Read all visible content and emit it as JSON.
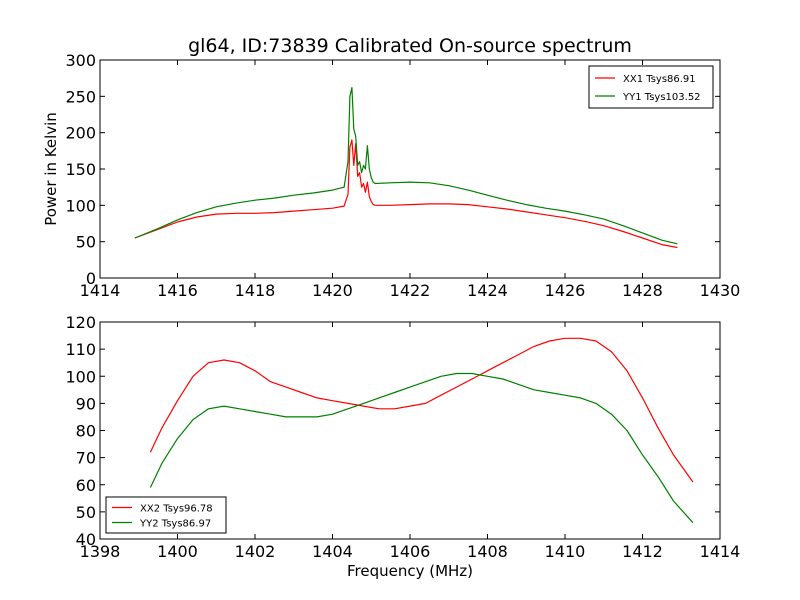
{
  "chart_data": [
    {
      "type": "line",
      "title": "gl64, ID:73839 Calibrated On-source spectrum",
      "xlabel": "",
      "ylabel": "Power in Kelvin",
      "xlim": [
        1414,
        1430
      ],
      "ylim": [
        0,
        300
      ],
      "xticks": [
        "1414",
        "1416",
        "1418",
        "1420",
        "1422",
        "1424",
        "1426",
        "1428",
        "1430"
      ],
      "yticks": [
        "0",
        "50",
        "100",
        "150",
        "200",
        "250",
        "300"
      ],
      "legend_position": "top-right",
      "grid": false,
      "series": [
        {
          "name": "XX1 Tsys86.91",
          "color": "#ff0000",
          "x": [
            1414.9,
            1415.5,
            1416.0,
            1416.5,
            1417.0,
            1417.5,
            1418.0,
            1418.5,
            1419.0,
            1419.5,
            1420.0,
            1420.3,
            1420.4,
            1420.45,
            1420.5,
            1420.55,
            1420.6,
            1420.65,
            1420.7,
            1420.75,
            1420.8,
            1420.85,
            1420.9,
            1420.95,
            1421.0,
            1421.05,
            1421.1,
            1421.5,
            1422.0,
            1422.5,
            1423.0,
            1423.5,
            1424.0,
            1424.5,
            1425.0,
            1425.5,
            1426.0,
            1426.5,
            1427.0,
            1427.5,
            1428.0,
            1428.5,
            1428.9
          ],
          "y": [
            55,
            67,
            77,
            84,
            88,
            89,
            89,
            90,
            92,
            94,
            96,
            99,
            115,
            180,
            190,
            155,
            185,
            140,
            145,
            125,
            130,
            118,
            132,
            112,
            105,
            101,
            100,
            100,
            101,
            102,
            102,
            101,
            98,
            95,
            91,
            87,
            83,
            78,
            72,
            64,
            55,
            46,
            42
          ]
        },
        {
          "name": "YY1 Tsys103.52",
          "color": "#008000",
          "x": [
            1414.9,
            1415.5,
            1416.0,
            1416.5,
            1417.0,
            1417.5,
            1418.0,
            1418.5,
            1419.0,
            1419.5,
            1420.0,
            1420.3,
            1420.4,
            1420.45,
            1420.5,
            1420.55,
            1420.6,
            1420.65,
            1420.7,
            1420.75,
            1420.8,
            1420.85,
            1420.9,
            1420.95,
            1421.0,
            1421.05,
            1421.1,
            1421.5,
            1422.0,
            1422.5,
            1423.0,
            1423.5,
            1424.0,
            1424.5,
            1425.0,
            1425.5,
            1426.0,
            1426.5,
            1427.0,
            1427.5,
            1428.0,
            1428.5,
            1428.9
          ],
          "y": [
            55,
            68,
            80,
            90,
            98,
            103,
            107,
            110,
            114,
            117,
            121,
            125,
            160,
            250,
            262,
            205,
            195,
            155,
            160,
            145,
            155,
            150,
            182,
            150,
            138,
            132,
            130,
            131,
            132,
            131,
            127,
            121,
            114,
            107,
            101,
            96,
            92,
            87,
            81,
            72,
            62,
            52,
            47
          ]
        }
      ]
    },
    {
      "type": "line",
      "title": "",
      "xlabel": "Frequency (MHz)",
      "ylabel": "",
      "xlim": [
        1398,
        1414
      ],
      "ylim": [
        40,
        120
      ],
      "xticks": [
        "1398",
        "1400",
        "1402",
        "1404",
        "1406",
        "1408",
        "1410",
        "1412",
        "1414"
      ],
      "yticks": [
        "40",
        "50",
        "60",
        "70",
        "80",
        "90",
        "100",
        "110",
        "120"
      ],
      "legend_position": "bottom-left",
      "grid": false,
      "series": [
        {
          "name": "XX2 Tsys96.78",
          "color": "#ff0000",
          "x": [
            1399.3,
            1399.6,
            1400.0,
            1400.4,
            1400.8,
            1401.2,
            1401.6,
            1402.0,
            1402.4,
            1402.8,
            1403.2,
            1403.6,
            1404.0,
            1404.4,
            1404.8,
            1405.2,
            1405.6,
            1406.0,
            1406.4,
            1406.8,
            1407.2,
            1407.6,
            1408.0,
            1408.4,
            1408.8,
            1409.2,
            1409.6,
            1410.0,
            1410.4,
            1410.8,
            1411.2,
            1411.6,
            1412.0,
            1412.4,
            1412.8,
            1413.3
          ],
          "y": [
            72,
            81,
            91,
            100,
            105,
            106,
            105,
            102,
            98,
            96,
            94,
            92,
            91,
            90,
            89,
            88,
            88,
            89,
            90,
            93,
            96,
            99,
            102,
            105,
            108,
            111,
            113,
            114,
            114,
            113,
            109,
            102,
            92,
            81,
            71,
            61
          ]
        },
        {
          "name": "YY2 Tsys86.97",
          "color": "#008000",
          "x": [
            1399.3,
            1399.6,
            1400.0,
            1400.4,
            1400.8,
            1401.2,
            1401.6,
            1402.0,
            1402.4,
            1402.8,
            1403.2,
            1403.6,
            1404.0,
            1404.4,
            1404.8,
            1405.2,
            1405.6,
            1406.0,
            1406.4,
            1406.8,
            1407.2,
            1407.6,
            1408.0,
            1408.4,
            1408.8,
            1409.2,
            1409.6,
            1410.0,
            1410.4,
            1410.8,
            1411.2,
            1411.6,
            1412.0,
            1412.4,
            1412.8,
            1413.3
          ],
          "y": [
            59,
            68,
            77,
            84,
            88,
            89,
            88,
            87,
            86,
            85,
            85,
            85,
            86,
            88,
            90,
            92,
            94,
            96,
            98,
            100,
            101,
            101,
            100,
            99,
            97,
            95,
            94,
            93,
            92,
            90,
            86,
            80,
            71,
            63,
            54,
            46
          ]
        }
      ]
    }
  ]
}
